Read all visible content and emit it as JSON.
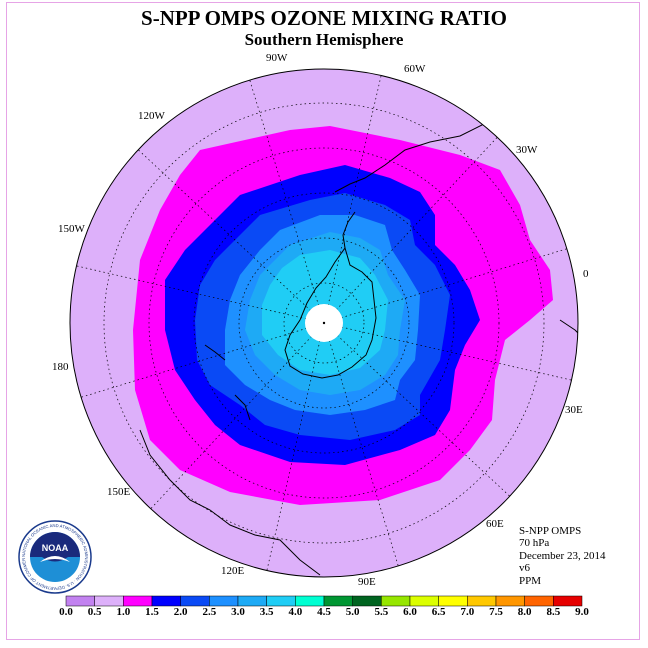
{
  "title": "S-NPP OMPS OZONE MIXING RATIO",
  "subtitle": "Southern Hemisphere",
  "longitude_labels": [
    "90W",
    "60W",
    "30W",
    "0",
    "30E",
    "60E",
    "90E",
    "120E",
    "150E",
    "180",
    "150W",
    "120W"
  ],
  "info": {
    "instrument": "S-NPP OMPS",
    "pressure": "70 hPa",
    "date": "December 23, 2014",
    "version": "v6",
    "units": "PPM"
  },
  "colorbar": {
    "ticks": [
      "0.0",
      "0.5",
      "1.0",
      "1.5",
      "2.0",
      "2.5",
      "3.0",
      "3.5",
      "4.0",
      "4.5",
      "5.0",
      "5.5",
      "6.0",
      "6.5",
      "7.0",
      "7.5",
      "8.0",
      "8.5",
      "9.0"
    ],
    "colors": [
      "#c282f0",
      "#ddb0fa",
      "#ff00ff",
      "#0000ff",
      "#0a4af5",
      "#1e90ff",
      "#1eaaf5",
      "#20cdf5",
      "#00ffd2",
      "#009632",
      "#006420",
      "#96e600",
      "#dcff00",
      "#ffff00",
      "#ffc800",
      "#ff9600",
      "#ff6400",
      "#e60000",
      "#8c5a32"
    ]
  },
  "logo": {
    "text": "NOAA",
    "ring_text": "NATIONAL OCEANIC AND ATMOSPHERIC ADMINISTRATION · U.S. DEPARTMENT OF COMMERCE"
  },
  "map_colors": {
    "outer": "#ddb0fa",
    "band_1_0": "#ff00ff",
    "band_1_5": "#0000ff",
    "band_2_0": "#0a4af5",
    "band_2_5": "#1e90ff",
    "band_3_0": "#1eaaf5",
    "band_3_5": "#20cdf5",
    "no_data": "#ffffff"
  }
}
